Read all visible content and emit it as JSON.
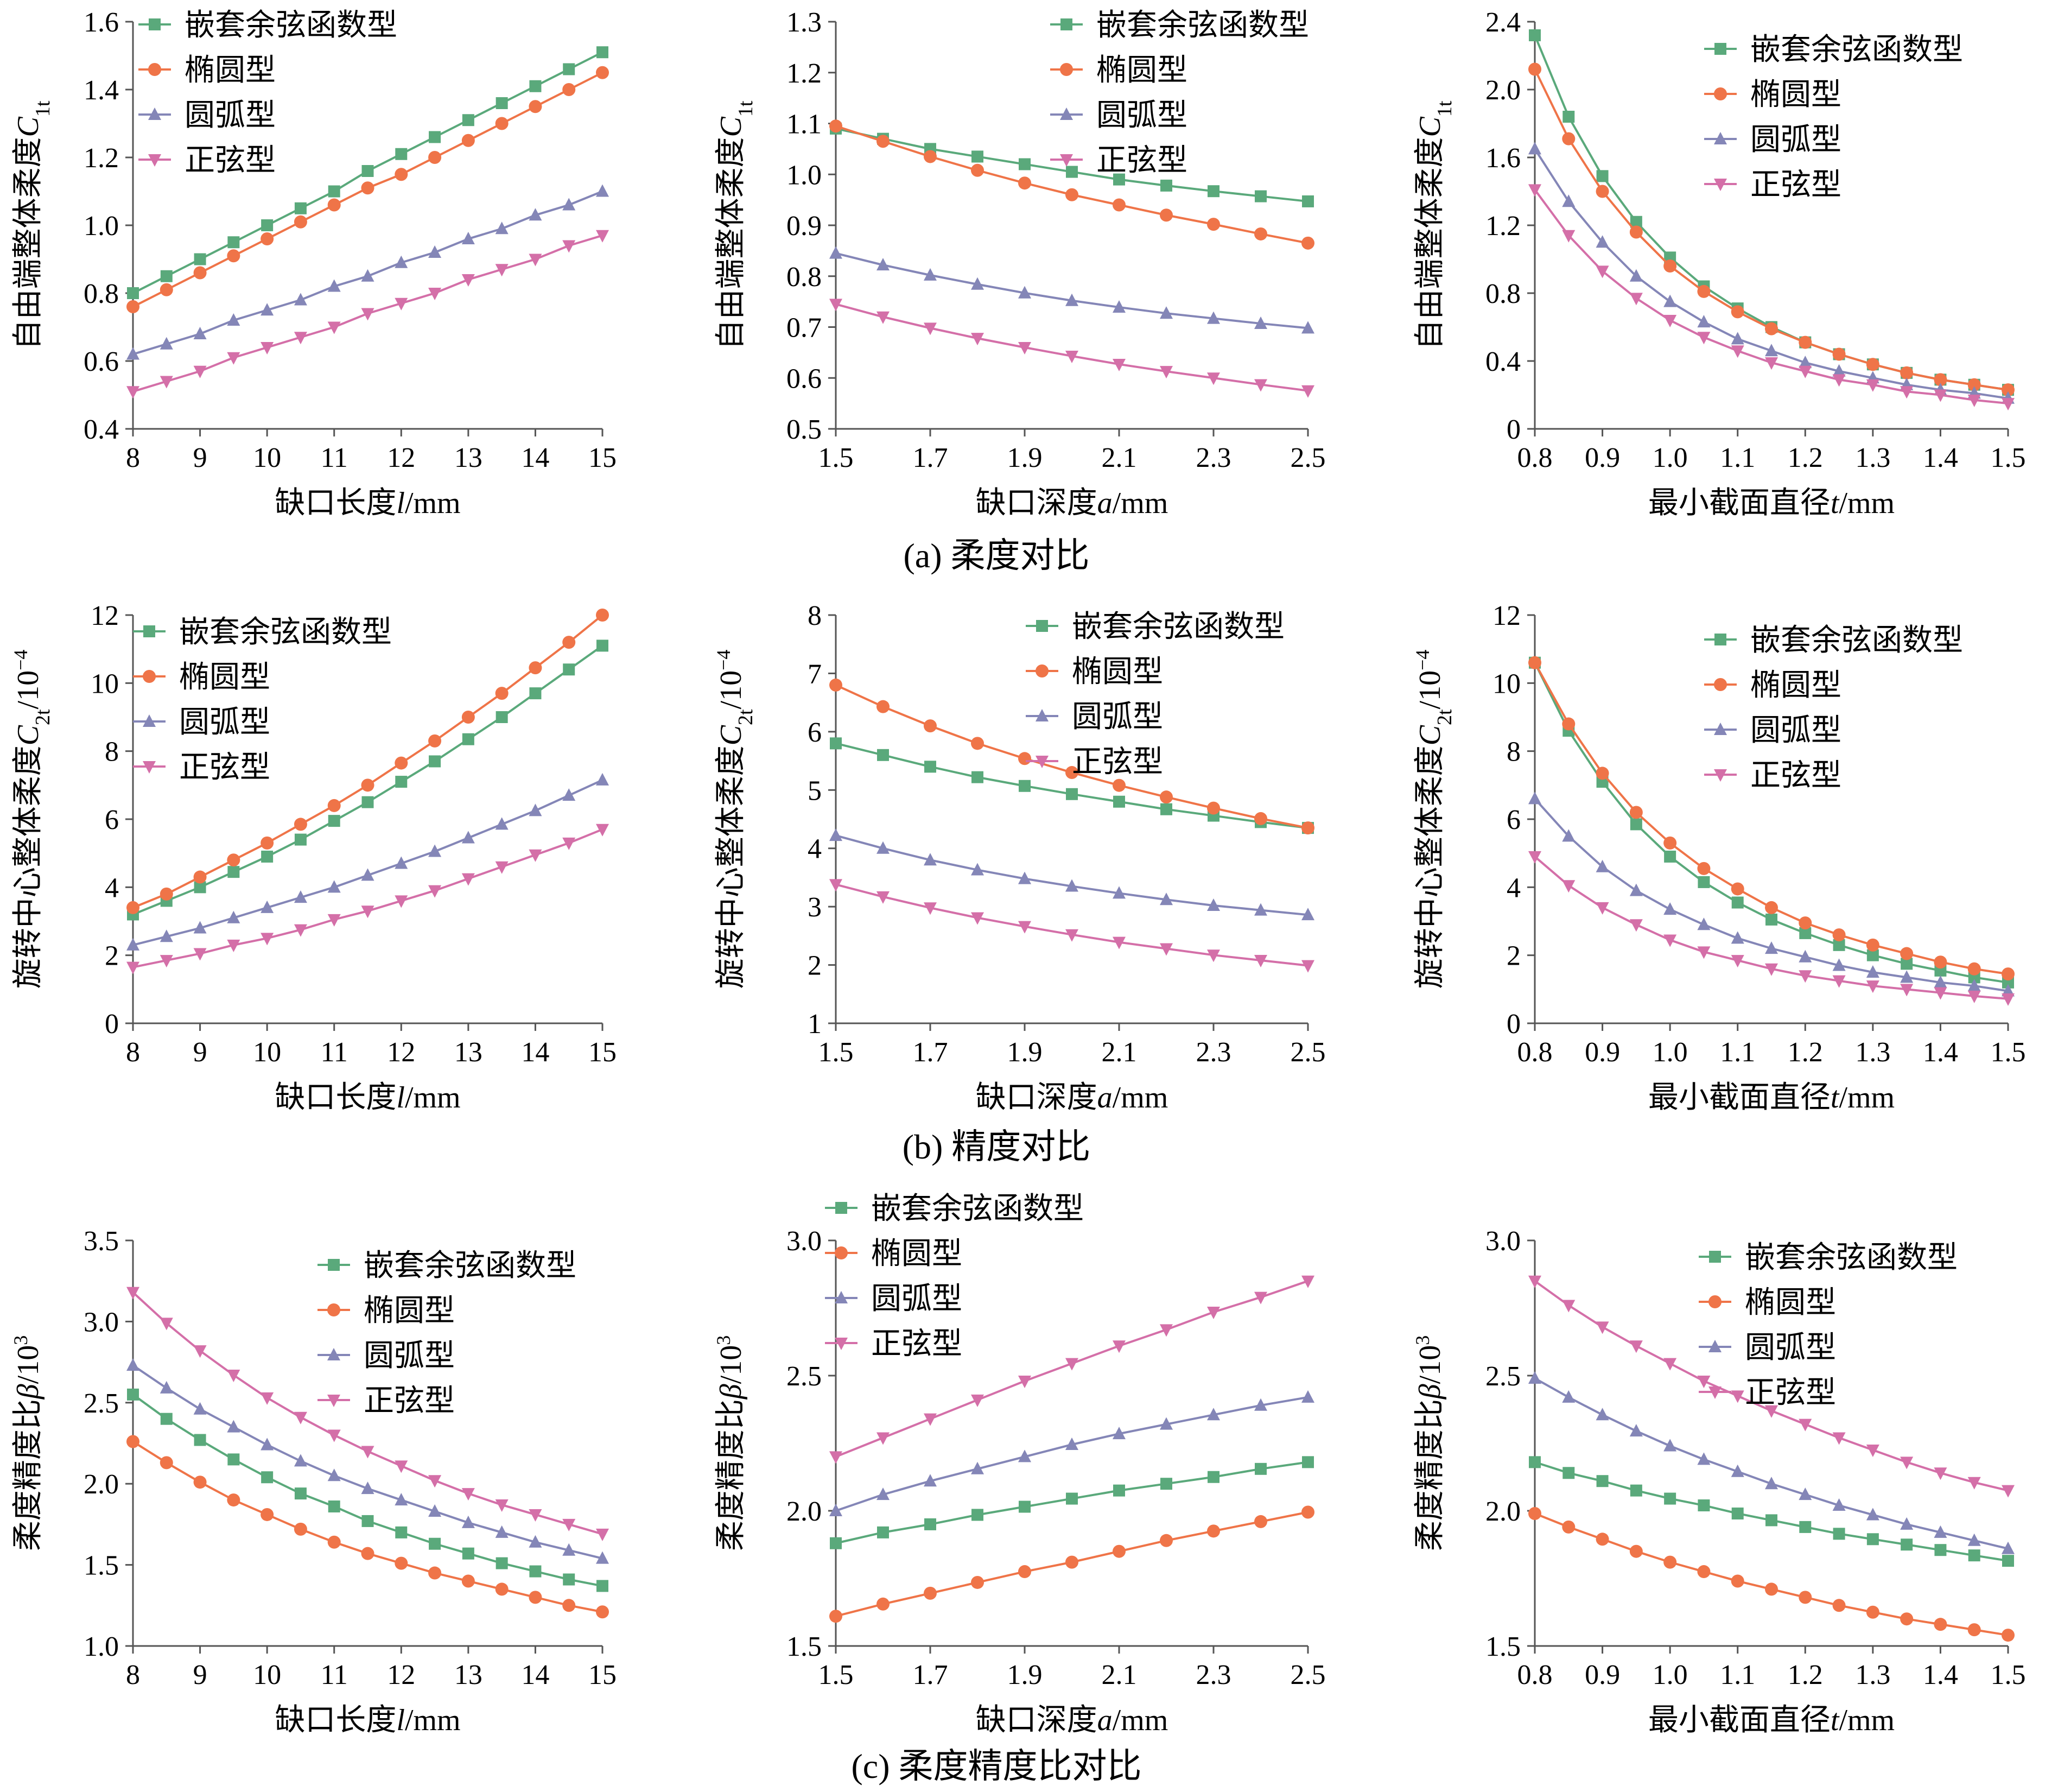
{
  "figure": {
    "captions": [
      {
        "text": "(a)  柔度对比",
        "row": 0
      },
      {
        "text": "(b)  精度对比",
        "row": 1
      },
      {
        "text": "(c)  柔度精度比对比",
        "row": 2
      }
    ]
  },
  "series_styles": [
    {
      "name": "嵌套余弦函数型",
      "color": "#5aa97b",
      "marker": "square"
    },
    {
      "name": "椭圆型",
      "color": "#ef7448",
      "marker": "circle"
    },
    {
      "name": "圆弧型",
      "color": "#8486b7",
      "marker": "triangle-up"
    },
    {
      "name": "正弦型",
      "color": "#d46fa8",
      "marker": "triangle-down"
    }
  ],
  "chart_data": [
    {
      "type": "line",
      "row": 0,
      "col": 0,
      "ylabel": "自由端整体柔度C1t",
      "xlabel": "缺口长度l/mm",
      "xlim": [
        8,
        15
      ],
      "ylim": [
        0.4,
        1.6
      ],
      "xticks": [
        "8",
        "9",
        "10",
        "11",
        "12",
        "13",
        "14",
        "15"
      ],
      "yticks": [
        "0.4",
        "0.6",
        "0.8",
        "1.0",
        "1.2",
        "1.4",
        "1.6"
      ],
      "legend_position": "top-left",
      "x": [
        8,
        8.5,
        9,
        9.5,
        10,
        10.5,
        11,
        11.5,
        12,
        12.5,
        13,
        13.5,
        14,
        14.5,
        15
      ],
      "series": [
        {
          "name": "嵌套余弦函数型",
          "values": [
            0.8,
            0.85,
            0.9,
            0.95,
            1.0,
            1.05,
            1.1,
            1.16,
            1.21,
            1.26,
            1.31,
            1.36,
            1.41,
            1.46,
            1.51
          ]
        },
        {
          "name": "椭圆型",
          "values": [
            0.76,
            0.81,
            0.86,
            0.91,
            0.96,
            1.01,
            1.06,
            1.11,
            1.15,
            1.2,
            1.25,
            1.3,
            1.35,
            1.4,
            1.45
          ]
        },
        {
          "name": "圆弧型",
          "values": [
            0.62,
            0.65,
            0.68,
            0.72,
            0.75,
            0.78,
            0.82,
            0.85,
            0.89,
            0.92,
            0.96,
            0.99,
            1.03,
            1.06,
            1.1
          ]
        },
        {
          "name": "正弦型",
          "values": [
            0.51,
            0.54,
            0.57,
            0.61,
            0.64,
            0.67,
            0.7,
            0.74,
            0.77,
            0.8,
            0.84,
            0.87,
            0.9,
            0.94,
            0.97
          ]
        }
      ]
    },
    {
      "type": "line",
      "row": 0,
      "col": 1,
      "ylabel": "自由端整体柔度C1t",
      "xlabel": "缺口深度a/mm",
      "xlim": [
        1.5,
        2.5
      ],
      "ylim": [
        0.5,
        1.3
      ],
      "xticks": [
        "1.5",
        "1.7",
        "1.9",
        "2.1",
        "2.3",
        "2.5"
      ],
      "yticks": [
        "0.5",
        "0.6",
        "0.7",
        "0.8",
        "0.9",
        "1.0",
        "1.1",
        "1.2",
        "1.3"
      ],
      "legend_position": "top-right",
      "x": [
        1.5,
        1.6,
        1.7,
        1.8,
        1.9,
        2.0,
        2.1,
        2.2,
        2.3,
        2.4,
        2.5
      ],
      "series": [
        {
          "name": "嵌套余弦函数型",
          "values": [
            1.09,
            1.07,
            1.05,
            1.035,
            1.02,
            1.005,
            0.99,
            0.978,
            0.967,
            0.957,
            0.947
          ]
        },
        {
          "name": "椭圆型",
          "values": [
            1.095,
            1.065,
            1.035,
            1.008,
            0.983,
            0.96,
            0.94,
            0.92,
            0.902,
            0.883,
            0.865
          ]
        },
        {
          "name": "圆弧型",
          "values": [
            0.845,
            0.822,
            0.802,
            0.784,
            0.767,
            0.752,
            0.739,
            0.727,
            0.717,
            0.707,
            0.698
          ]
        },
        {
          "name": "正弦型",
          "values": [
            0.745,
            0.72,
            0.698,
            0.678,
            0.66,
            0.643,
            0.627,
            0.613,
            0.6,
            0.587,
            0.575
          ]
        }
      ]
    },
    {
      "type": "line",
      "row": 0,
      "col": 2,
      "ylabel": "自由端整体柔度C1t",
      "xlabel": "最小截面直径t/mm",
      "xlim": [
        0.8,
        1.5
      ],
      "ylim": [
        0,
        2.4
      ],
      "xticks": [
        "0.8",
        "0.9",
        "1.0",
        "1.1",
        "1.2",
        "1.3",
        "1.4",
        "1.5"
      ],
      "yticks": [
        "0",
        "0.4",
        "0.8",
        "1.2",
        "1.6",
        "2.0",
        "2.4"
      ],
      "legend_position": "top-right",
      "x": [
        0.8,
        0.85,
        0.9,
        0.95,
        1.0,
        1.05,
        1.1,
        1.15,
        1.2,
        1.25,
        1.3,
        1.35,
        1.4,
        1.45,
        1.5
      ],
      "series": [
        {
          "name": "嵌套余弦函数型",
          "values": [
            2.32,
            1.84,
            1.49,
            1.22,
            1.01,
            0.84,
            0.71,
            0.6,
            0.51,
            0.44,
            0.38,
            0.33,
            0.29,
            0.26,
            0.23
          ]
        },
        {
          "name": "椭圆型",
          "values": [
            2.12,
            1.71,
            1.4,
            1.16,
            0.96,
            0.81,
            0.69,
            0.59,
            0.51,
            0.44,
            0.38,
            0.33,
            0.29,
            0.26,
            0.23
          ]
        },
        {
          "name": "圆弧型",
          "values": [
            1.65,
            1.34,
            1.1,
            0.9,
            0.75,
            0.63,
            0.53,
            0.46,
            0.39,
            0.34,
            0.3,
            0.26,
            0.23,
            0.21,
            0.18
          ]
        },
        {
          "name": "正弦型",
          "values": [
            1.41,
            1.14,
            0.93,
            0.77,
            0.64,
            0.54,
            0.46,
            0.39,
            0.34,
            0.29,
            0.26,
            0.22,
            0.2,
            0.17,
            0.15
          ]
        }
      ]
    },
    {
      "type": "line",
      "row": 1,
      "col": 0,
      "ylabel": "旋转中心整体柔度C2t/10⁻⁴",
      "xlabel": "缺口长度l/mm",
      "xlim": [
        8,
        15
      ],
      "ylim": [
        0,
        12
      ],
      "xticks": [
        "8",
        "9",
        "10",
        "11",
        "12",
        "13",
        "14",
        "15"
      ],
      "yticks": [
        "0",
        "2",
        "4",
        "6",
        "8",
        "10",
        "12"
      ],
      "legend_position": "top-left",
      "x": [
        8,
        8.5,
        9,
        9.5,
        10,
        10.5,
        11,
        11.5,
        12,
        12.5,
        13,
        13.5,
        14,
        14.5,
        15
      ],
      "series": [
        {
          "name": "嵌套余弦函数型",
          "values": [
            3.2,
            3.6,
            4.0,
            4.45,
            4.9,
            5.4,
            5.95,
            6.5,
            7.1,
            7.7,
            8.35,
            9.0,
            9.7,
            10.4,
            11.1
          ]
        },
        {
          "name": "椭圆型",
          "values": [
            3.4,
            3.8,
            4.3,
            4.8,
            5.3,
            5.85,
            6.4,
            7.0,
            7.65,
            8.3,
            9.0,
            9.7,
            10.45,
            11.2,
            12.0
          ]
        },
        {
          "name": "圆弧型",
          "values": [
            2.3,
            2.55,
            2.8,
            3.1,
            3.4,
            3.7,
            4.0,
            4.35,
            4.7,
            5.05,
            5.45,
            5.85,
            6.25,
            6.7,
            7.15
          ]
        },
        {
          "name": "正弦型",
          "values": [
            1.65,
            1.85,
            2.05,
            2.3,
            2.5,
            2.75,
            3.05,
            3.3,
            3.6,
            3.9,
            4.25,
            4.6,
            4.95,
            5.3,
            5.7
          ]
        }
      ]
    },
    {
      "type": "line",
      "row": 1,
      "col": 1,
      "ylabel": "旋转中心整体柔度C2t/10⁻⁴",
      "xlabel": "缺口深度a/mm",
      "xlim": [
        1.5,
        2.5
      ],
      "ylim": [
        1,
        8
      ],
      "xticks": [
        "1.5",
        "1.7",
        "1.9",
        "2.1",
        "2.3",
        "2.5"
      ],
      "yticks": [
        "1",
        "2",
        "3",
        "4",
        "5",
        "6",
        "7",
        "8"
      ],
      "legend_position": "top-right",
      "x": [
        1.5,
        1.6,
        1.7,
        1.8,
        1.9,
        2.0,
        2.1,
        2.2,
        2.3,
        2.4,
        2.5
      ],
      "series": [
        {
          "name": "嵌套余弦函数型",
          "values": [
            5.8,
            5.6,
            5.4,
            5.22,
            5.07,
            4.93,
            4.8,
            4.67,
            4.56,
            4.45,
            4.35
          ]
        },
        {
          "name": "椭圆型",
          "values": [
            6.8,
            6.43,
            6.1,
            5.8,
            5.54,
            5.3,
            5.08,
            4.88,
            4.69,
            4.51,
            4.35
          ]
        },
        {
          "name": "圆弧型",
          "values": [
            4.22,
            4.0,
            3.8,
            3.63,
            3.48,
            3.35,
            3.23,
            3.12,
            3.02,
            2.94,
            2.86
          ]
        },
        {
          "name": "正弦型",
          "values": [
            3.38,
            3.17,
            2.98,
            2.81,
            2.66,
            2.52,
            2.39,
            2.28,
            2.17,
            2.08,
            1.99
          ]
        }
      ]
    },
    {
      "type": "line",
      "row": 1,
      "col": 2,
      "ylabel": "旋转中心整体柔度C2t/10⁻⁴",
      "xlabel": "最小截面直径t/mm",
      "xlim": [
        0.8,
        1.5
      ],
      "ylim": [
        0,
        12
      ],
      "xticks": [
        "0.8",
        "0.9",
        "1.0",
        "1.1",
        "1.2",
        "1.3",
        "1.4",
        "1.5"
      ],
      "yticks": [
        "0",
        "2",
        "4",
        "6",
        "8",
        "10",
        "12"
      ],
      "legend_position": "top-right",
      "x": [
        0.8,
        0.85,
        0.9,
        0.95,
        1.0,
        1.05,
        1.1,
        1.15,
        1.2,
        1.25,
        1.3,
        1.35,
        1.4,
        1.45,
        1.5
      ],
      "series": [
        {
          "name": "嵌套余弦函数型",
          "values": [
            10.6,
            8.6,
            7.1,
            5.85,
            4.9,
            4.15,
            3.55,
            3.05,
            2.65,
            2.3,
            2.0,
            1.75,
            1.55,
            1.35,
            1.2
          ]
        },
        {
          "name": "椭圆型",
          "values": [
            10.6,
            8.8,
            7.35,
            6.2,
            5.3,
            4.55,
            3.95,
            3.4,
            2.95,
            2.6,
            2.3,
            2.05,
            1.8,
            1.6,
            1.45
          ]
        },
        {
          "name": "圆弧型",
          "values": [
            6.6,
            5.5,
            4.6,
            3.9,
            3.35,
            2.9,
            2.5,
            2.2,
            1.95,
            1.7,
            1.5,
            1.35,
            1.2,
            1.1,
            0.95
          ]
        },
        {
          "name": "正弦型",
          "values": [
            4.9,
            4.05,
            3.4,
            2.9,
            2.45,
            2.1,
            1.85,
            1.6,
            1.4,
            1.25,
            1.1,
            1.0,
            0.9,
            0.8,
            0.72
          ]
        }
      ]
    },
    {
      "type": "line",
      "row": 2,
      "col": 0,
      "ylabel": "柔度精度比β/10³",
      "xlabel": "缺口长度l/mm",
      "xlim": [
        8,
        15
      ],
      "ylim": [
        1.0,
        3.5
      ],
      "xticks": [
        "8",
        "9",
        "10",
        "11",
        "12",
        "13",
        "14",
        "15"
      ],
      "yticks": [
        "1.0",
        "1.5",
        "2.0",
        "2.5",
        "3.0",
        "3.5"
      ],
      "legend_position": "top-right",
      "x": [
        8,
        8.5,
        9,
        9.5,
        10,
        10.5,
        11,
        11.5,
        12,
        12.5,
        13,
        13.5,
        14,
        14.5,
        15
      ],
      "series": [
        {
          "name": "嵌套余弦函数型",
          "values": [
            2.55,
            2.4,
            2.27,
            2.15,
            2.04,
            1.94,
            1.86,
            1.77,
            1.7,
            1.63,
            1.57,
            1.51,
            1.46,
            1.41,
            1.37
          ]
        },
        {
          "name": "椭圆型",
          "values": [
            2.26,
            2.13,
            2.01,
            1.9,
            1.81,
            1.72,
            1.64,
            1.57,
            1.51,
            1.45,
            1.4,
            1.35,
            1.3,
            1.25,
            1.21
          ]
        },
        {
          "name": "圆弧型",
          "values": [
            2.73,
            2.59,
            2.46,
            2.35,
            2.24,
            2.14,
            2.05,
            1.97,
            1.9,
            1.83,
            1.76,
            1.7,
            1.64,
            1.59,
            1.54
          ]
        },
        {
          "name": "正弦型",
          "values": [
            3.18,
            2.99,
            2.82,
            2.67,
            2.53,
            2.41,
            2.3,
            2.2,
            2.11,
            2.02,
            1.94,
            1.87,
            1.81,
            1.75,
            1.69
          ]
        }
      ]
    },
    {
      "type": "line",
      "row": 2,
      "col": 1,
      "ylabel": "柔度精度比β/10³",
      "xlabel": "缺口深度a/mm",
      "xlim": [
        1.5,
        2.5
      ],
      "ylim": [
        1.5,
        3.0
      ],
      "xticks": [
        "1.5",
        "1.7",
        "1.9",
        "2.1",
        "2.3",
        "2.5"
      ],
      "yticks": [
        "1.5",
        "2.0",
        "2.5",
        "3.0"
      ],
      "legend_position": "top-left",
      "x": [
        1.5,
        1.6,
        1.7,
        1.8,
        1.9,
        2.0,
        2.1,
        2.2,
        2.3,
        2.4,
        2.5
      ],
      "series": [
        {
          "name": "嵌套余弦函数型",
          "values": [
            1.88,
            1.92,
            1.95,
            1.985,
            2.015,
            2.045,
            2.075,
            2.1,
            2.125,
            2.155,
            2.18
          ]
        },
        {
          "name": "椭圆型",
          "values": [
            1.61,
            1.655,
            1.695,
            1.735,
            1.775,
            1.81,
            1.85,
            1.89,
            1.925,
            1.96,
            1.995
          ]
        },
        {
          "name": "圆弧型",
          "values": [
            2.0,
            2.06,
            2.11,
            2.155,
            2.2,
            2.245,
            2.285,
            2.32,
            2.355,
            2.39,
            2.42
          ]
        },
        {
          "name": "正弦型",
          "values": [
            2.2,
            2.27,
            2.34,
            2.41,
            2.48,
            2.545,
            2.61,
            2.67,
            2.735,
            2.79,
            2.85
          ]
        }
      ]
    },
    {
      "type": "line",
      "row": 2,
      "col": 2,
      "ylabel": "柔度精度比β/10³",
      "xlabel": "最小截面直径t/mm",
      "xlim": [
        0.8,
        1.5
      ],
      "ylim": [
        1.5,
        3.0
      ],
      "xticks": [
        "0.8",
        "0.9",
        "1.0",
        "1.1",
        "1.2",
        "1.3",
        "1.4",
        "1.5"
      ],
      "yticks": [
        "1.5",
        "2.0",
        "2.5",
        "3.0"
      ],
      "legend_position": "top-right",
      "x": [
        0.8,
        0.85,
        0.9,
        0.95,
        1.0,
        1.05,
        1.1,
        1.15,
        1.2,
        1.25,
        1.3,
        1.35,
        1.4,
        1.45,
        1.5
      ],
      "series": [
        {
          "name": "嵌套余弦函数型",
          "values": [
            2.18,
            2.14,
            2.11,
            2.075,
            2.045,
            2.02,
            1.99,
            1.965,
            1.94,
            1.915,
            1.895,
            1.875,
            1.855,
            1.835,
            1.815
          ]
        },
        {
          "name": "椭圆型",
          "values": [
            1.99,
            1.94,
            1.895,
            1.85,
            1.81,
            1.775,
            1.74,
            1.71,
            1.68,
            1.65,
            1.625,
            1.6,
            1.58,
            1.56,
            1.54
          ]
        },
        {
          "name": "圆弧型",
          "values": [
            2.49,
            2.42,
            2.355,
            2.295,
            2.24,
            2.19,
            2.145,
            2.1,
            2.06,
            2.02,
            1.985,
            1.95,
            1.92,
            1.89,
            1.86
          ]
        },
        {
          "name": "正弦型",
          "values": [
            2.85,
            2.76,
            2.68,
            2.61,
            2.545,
            2.48,
            2.425,
            2.37,
            2.32,
            2.27,
            2.225,
            2.18,
            2.14,
            2.105,
            2.075
          ]
        }
      ]
    }
  ]
}
